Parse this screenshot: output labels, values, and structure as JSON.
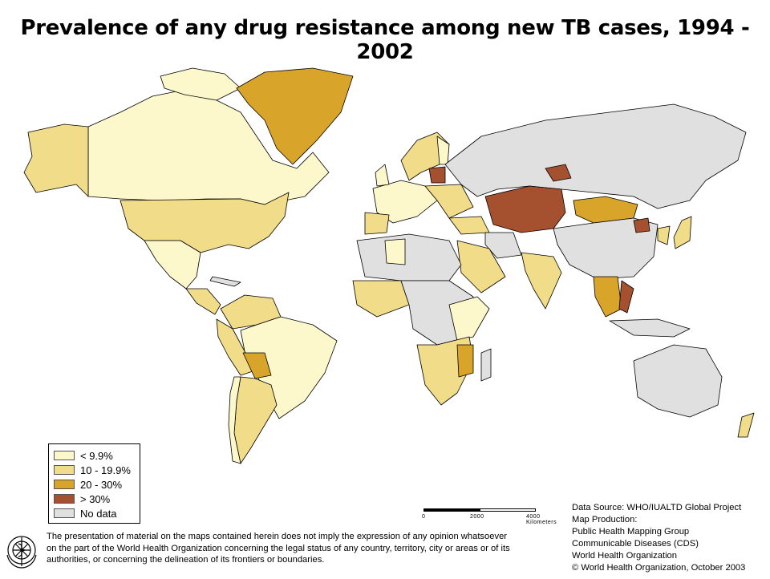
{
  "title": "Prevalence of any drug resistance among new TB cases, 1994 - 2002",
  "colors": {
    "ocean": "#ffffff",
    "border": "#000000",
    "lt10": "#fdf8cc",
    "r10_20": "#f1dc8a",
    "r20_30": "#d8a42a",
    "gt30": "#a5502e",
    "nodata": "#e0e0e0"
  },
  "legend": [
    {
      "label": "< 9.9%",
      "color": "#fdf8cc"
    },
    {
      "label": "10 - 19.9%",
      "color": "#f1dc8a"
    },
    {
      "label": "20 - 30%",
      "color": "#d8a42a"
    },
    {
      "label": "> 30%",
      "color": "#a5502e"
    },
    {
      "label": "No data",
      "color": "#e0e0e0"
    }
  ],
  "scale_bar": {
    "labels": [
      "0",
      "2000",
      "4000 Kilometers"
    ]
  },
  "disclaimer": [
    "The presentation of material on the maps contained herein does not imply the expression of any opinion whatsoever",
    "on the part of the World Health Organization concerning the legal status of any country, territory, city or areas or of its",
    "authorities, or concerning the delineation of its frontiers or boundaries."
  ],
  "credits": [
    "Data Source: WHO/IUALTD Global Project",
    "Map Production:",
    "Public Health Mapping Group",
    "Communicable Diseases (CDS)",
    "World Health Organization",
    "© World Health Organization, October 2003"
  ],
  "logo": "who-emblem-icon"
}
